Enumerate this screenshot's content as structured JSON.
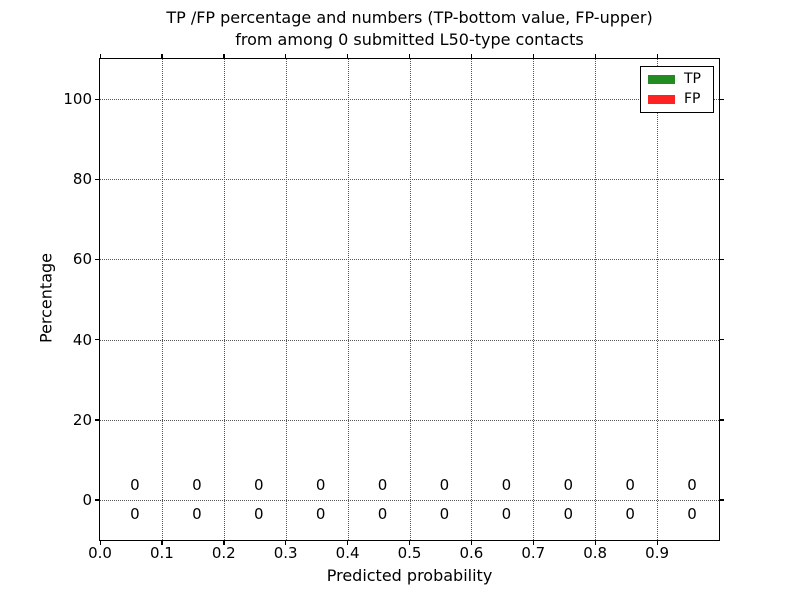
{
  "chart_data": {
    "type": "bar",
    "title_line1": "TP /FP percentage and numbers (TP-bottom value, FP-upper)",
    "title_line2": "from among 0 submitted L50-type contacts",
    "xlabel": "Predicted probability",
    "ylabel": "Percentage",
    "xlim": [
      0.0,
      1.0
    ],
    "ylim": [
      -10,
      110
    ],
    "grid": {
      "style": "dotted",
      "color": "#555555",
      "on": true
    },
    "x_ticks": [
      {
        "value": 0.0,
        "label": "0.0"
      },
      {
        "value": 0.1,
        "label": "0.1"
      },
      {
        "value": 0.2,
        "label": "0.2"
      },
      {
        "value": 0.3,
        "label": "0.3"
      },
      {
        "value": 0.4,
        "label": "0.4"
      },
      {
        "value": 0.5,
        "label": "0.5"
      },
      {
        "value": 0.6,
        "label": "0.6"
      },
      {
        "value": 0.7,
        "label": "0.7"
      },
      {
        "value": 0.8,
        "label": "0.8"
      },
      {
        "value": 0.9,
        "label": "0.9"
      }
    ],
    "y_ticks": [
      {
        "value": 0,
        "label": "0"
      },
      {
        "value": 20,
        "label": "20"
      },
      {
        "value": 40,
        "label": "40"
      },
      {
        "value": 60,
        "label": "60"
      },
      {
        "value": 80,
        "label": "80"
      },
      {
        "value": 100,
        "label": "100"
      }
    ],
    "bin_centers": [
      0.05,
      0.15,
      0.25,
      0.35,
      0.45,
      0.55,
      0.65,
      0.75,
      0.85,
      0.95
    ],
    "series": [
      {
        "name": "TP",
        "color": "#228B22",
        "percent_values": [
          0,
          0,
          0,
          0,
          0,
          0,
          0,
          0,
          0,
          0
        ],
        "count_labels": [
          "0",
          "0",
          "0",
          "0",
          "0",
          "0",
          "0",
          "0",
          "0",
          "0"
        ],
        "annotation_row": "bottom"
      },
      {
        "name": "FP",
        "color": "#FF2222",
        "percent_values": [
          0,
          0,
          0,
          0,
          0,
          0,
          0,
          0,
          0,
          0
        ],
        "count_labels": [
          "0",
          "0",
          "0",
          "0",
          "0",
          "0",
          "0",
          "0",
          "0",
          "0"
        ],
        "annotation_row": "top"
      }
    ],
    "legend": {
      "position": "upper-right",
      "entries": [
        {
          "label": "TP",
          "color": "#228B22"
        },
        {
          "label": "FP",
          "color": "#FF2222"
        }
      ]
    }
  }
}
